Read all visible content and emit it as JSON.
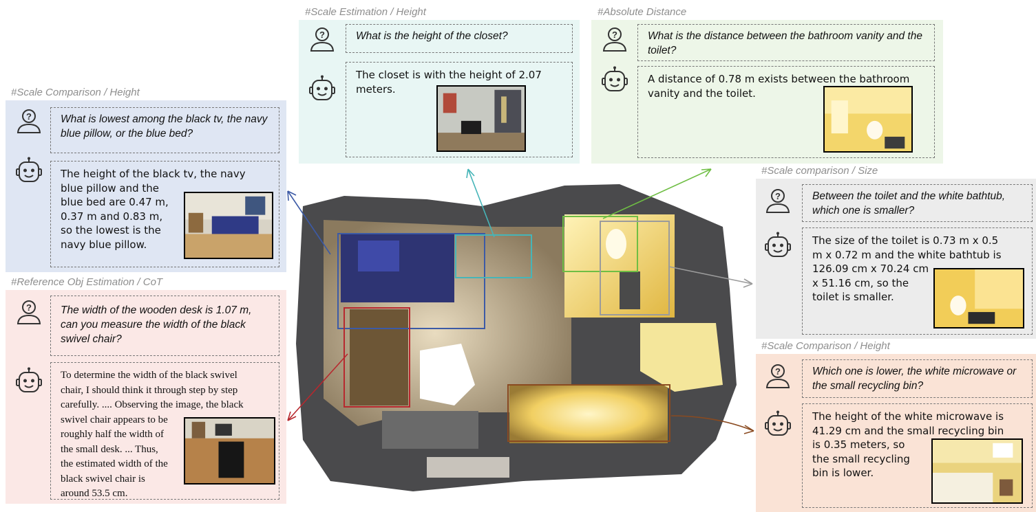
{
  "colors": {
    "blue_panel": "#dfe6f3",
    "cyan_panel": "#e8f6f4",
    "green_panel": "#edf6e8",
    "gray_panel": "#ececec",
    "pink_panel": "#fbe8e6",
    "orange_panel": "#fae3d6",
    "blue_box": "#3c5aa6",
    "cyan_box": "#46b5b8",
    "green_box": "#6fbe44",
    "gray_box": "#9b9b9b",
    "red_box": "#b7282e",
    "brown_box": "#8a4a20"
  },
  "panels": {
    "scale_comparison_height_1": {
      "tag": "#Scale Comparison / Height",
      "question": "What is lowest among the black tv, the navy blue pillow, or the blue bed?",
      "answer": "The height of the black tv, the navy\nblue pillow and the\nblue bed are 0.47 m,\n0.37 m and 0.83 m,\nso the lowest is the\nnavy blue pillow."
    },
    "scale_estimation_height": {
      "tag": "#Scale Estimation / Height",
      "question": "What is the height of the closet?",
      "answer": "The closet is with the height of 2.07\nmeters."
    },
    "absolute_distance": {
      "tag": "#Absolute Distance",
      "question": "What is the distance between the bathroom vanity and the toilet?",
      "answer": "A distance of 0.78 m exists between the bathroom vanity and the toilet."
    },
    "scale_comparison_size": {
      "tag": "#Scale comparison / Size",
      "question": "Between the toilet and the white bathtub, which one is smaller?",
      "answer": "The size of the toilet is 0.73 m x 0.5\nm x 0.72 m and the white bathtub is\n126.09 cm x 70.24 cm\nx 51.16 cm, so the\n toilet is smaller."
    },
    "reference_obj_estimation": {
      "tag": "#Reference Obj Estimation / CoT",
      "question": "The width of the wooden desk is 1.07 m, can you measure the width of the black swivel chair?",
      "answer": "To determine the width of the black swivel\nchair, I should think it through step by step\ncarefully. .... Observing the image, the black\nswivel chair appears to be\n roughly half the width of\nthe small desk. ...     Thus,\nthe estimated width of the\nblack swivel chair is\naround 53.5 cm."
    },
    "scale_comparison_height_2": {
      "tag": "#Scale Comparison / Height",
      "question": "Which one is lower, the white microwave or the small recycling bin?",
      "answer": "The height of the white microwave is\n41.29 cm and the small recycling bin\nis 0.35 meters, so\nthe small recycling\nbin is lower."
    }
  }
}
